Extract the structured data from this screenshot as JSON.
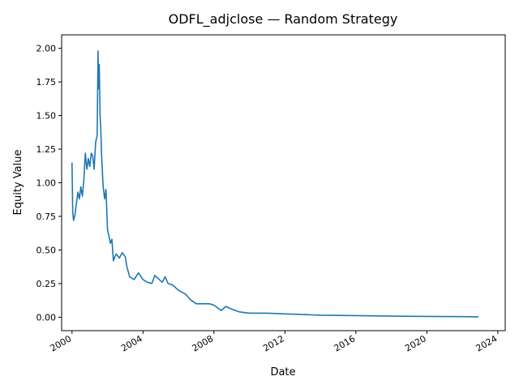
{
  "chart_data": {
    "type": "line",
    "title": "ODFL_adjclose — Random Strategy",
    "xlabel": "Date",
    "ylabel": "Equity Value",
    "xlim": [
      "1999-06-01",
      "2024-06-01"
    ],
    "ylim": [
      -0.1,
      2.1
    ],
    "x_ticks": [
      {
        "label": "2000",
        "value": "2000-01-01"
      },
      {
        "label": "2004",
        "value": "2004-01-01"
      },
      {
        "label": "2008",
        "value": "2008-01-01"
      },
      {
        "label": "2012",
        "value": "2012-01-01"
      },
      {
        "label": "2016",
        "value": "2016-01-01"
      },
      {
        "label": "2020",
        "value": "2020-01-01"
      },
      {
        "label": "2024",
        "value": "2024-01-01"
      }
    ],
    "y_ticks": [
      {
        "label": "0.00",
        "value": 0.0
      },
      {
        "label": "0.25",
        "value": 0.25
      },
      {
        "label": "0.50",
        "value": 0.5
      },
      {
        "label": "0.75",
        "value": 0.75
      },
      {
        "label": "1.00",
        "value": 1.0
      },
      {
        "label": "1.25",
        "value": 1.25
      },
      {
        "label": "1.50",
        "value": 1.5
      },
      {
        "label": "1.75",
        "value": 1.75
      },
      {
        "label": "2.00",
        "value": 2.0
      }
    ],
    "grid": false,
    "legend": "none",
    "line_color": "#1f77b4",
    "series": [
      {
        "x": [
          "2000-01-01",
          "2000-01-07",
          "2000-01-15",
          "2000-02-01",
          "2000-03-01",
          "2000-04-01",
          "2000-05-01",
          "2000-06-01",
          "2000-07-01",
          "2000-08-01",
          "2000-09-01",
          "2000-10-01",
          "2000-11-01",
          "2000-12-01",
          "2001-01-01",
          "2001-02-01",
          "2001-03-01",
          "2001-04-01",
          "2001-05-01",
          "2001-06-01",
          "2001-06-20",
          "2001-07-01",
          "2001-07-15",
          "2001-08-01",
          "2001-08-15",
          "2001-09-01",
          "2001-10-01",
          "2001-11-01",
          "2001-12-01",
          "2002-01-01",
          "2002-02-01",
          "2002-03-01",
          "2002-04-01",
          "2002-05-01",
          "2002-06-01",
          "2002-07-01",
          "2002-09-01",
          "2002-11-01",
          "2003-01-01",
          "2003-02-01",
          "2003-04-01",
          "2003-07-01",
          "2003-10-01",
          "2004-01-01",
          "2004-04-01",
          "2004-07-01",
          "2004-09-01",
          "2004-11-01",
          "2005-02-01",
          "2005-04-01",
          "2005-06-01",
          "2005-09-01",
          "2006-01-01",
          "2006-06-01",
          "2006-09-01",
          "2007-01-01",
          "2007-06-01",
          "2007-10-01",
          "2008-01-01",
          "2008-06-01",
          "2008-09-01",
          "2009-01-01",
          "2009-06-01",
          "2010-01-01",
          "2011-01-01",
          "2012-01-01",
          "2013-01-01",
          "2014-01-01",
          "2016-01-01",
          "2018-01-01",
          "2020-01-01",
          "2022-01-01",
          "2022-12-01"
        ],
        "values": [
          1.15,
          0.98,
          0.78,
          0.72,
          0.76,
          0.85,
          0.93,
          0.88,
          0.97,
          0.9,
          1.02,
          1.22,
          1.1,
          1.18,
          1.12,
          1.22,
          1.2,
          1.1,
          1.3,
          1.35,
          1.98,
          1.7,
          1.88,
          1.5,
          1.4,
          1.2,
          0.98,
          0.88,
          0.95,
          0.65,
          0.6,
          0.55,
          0.58,
          0.42,
          0.45,
          0.47,
          0.44,
          0.48,
          0.45,
          0.38,
          0.3,
          0.28,
          0.33,
          0.28,
          0.26,
          0.25,
          0.31,
          0.29,
          0.26,
          0.3,
          0.25,
          0.24,
          0.2,
          0.17,
          0.13,
          0.1,
          0.1,
          0.1,
          0.09,
          0.05,
          0.08,
          0.06,
          0.04,
          0.03,
          0.03,
          0.025,
          0.02,
          0.015,
          0.012,
          0.008,
          0.006,
          0.004,
          0.003
        ]
      }
    ]
  }
}
